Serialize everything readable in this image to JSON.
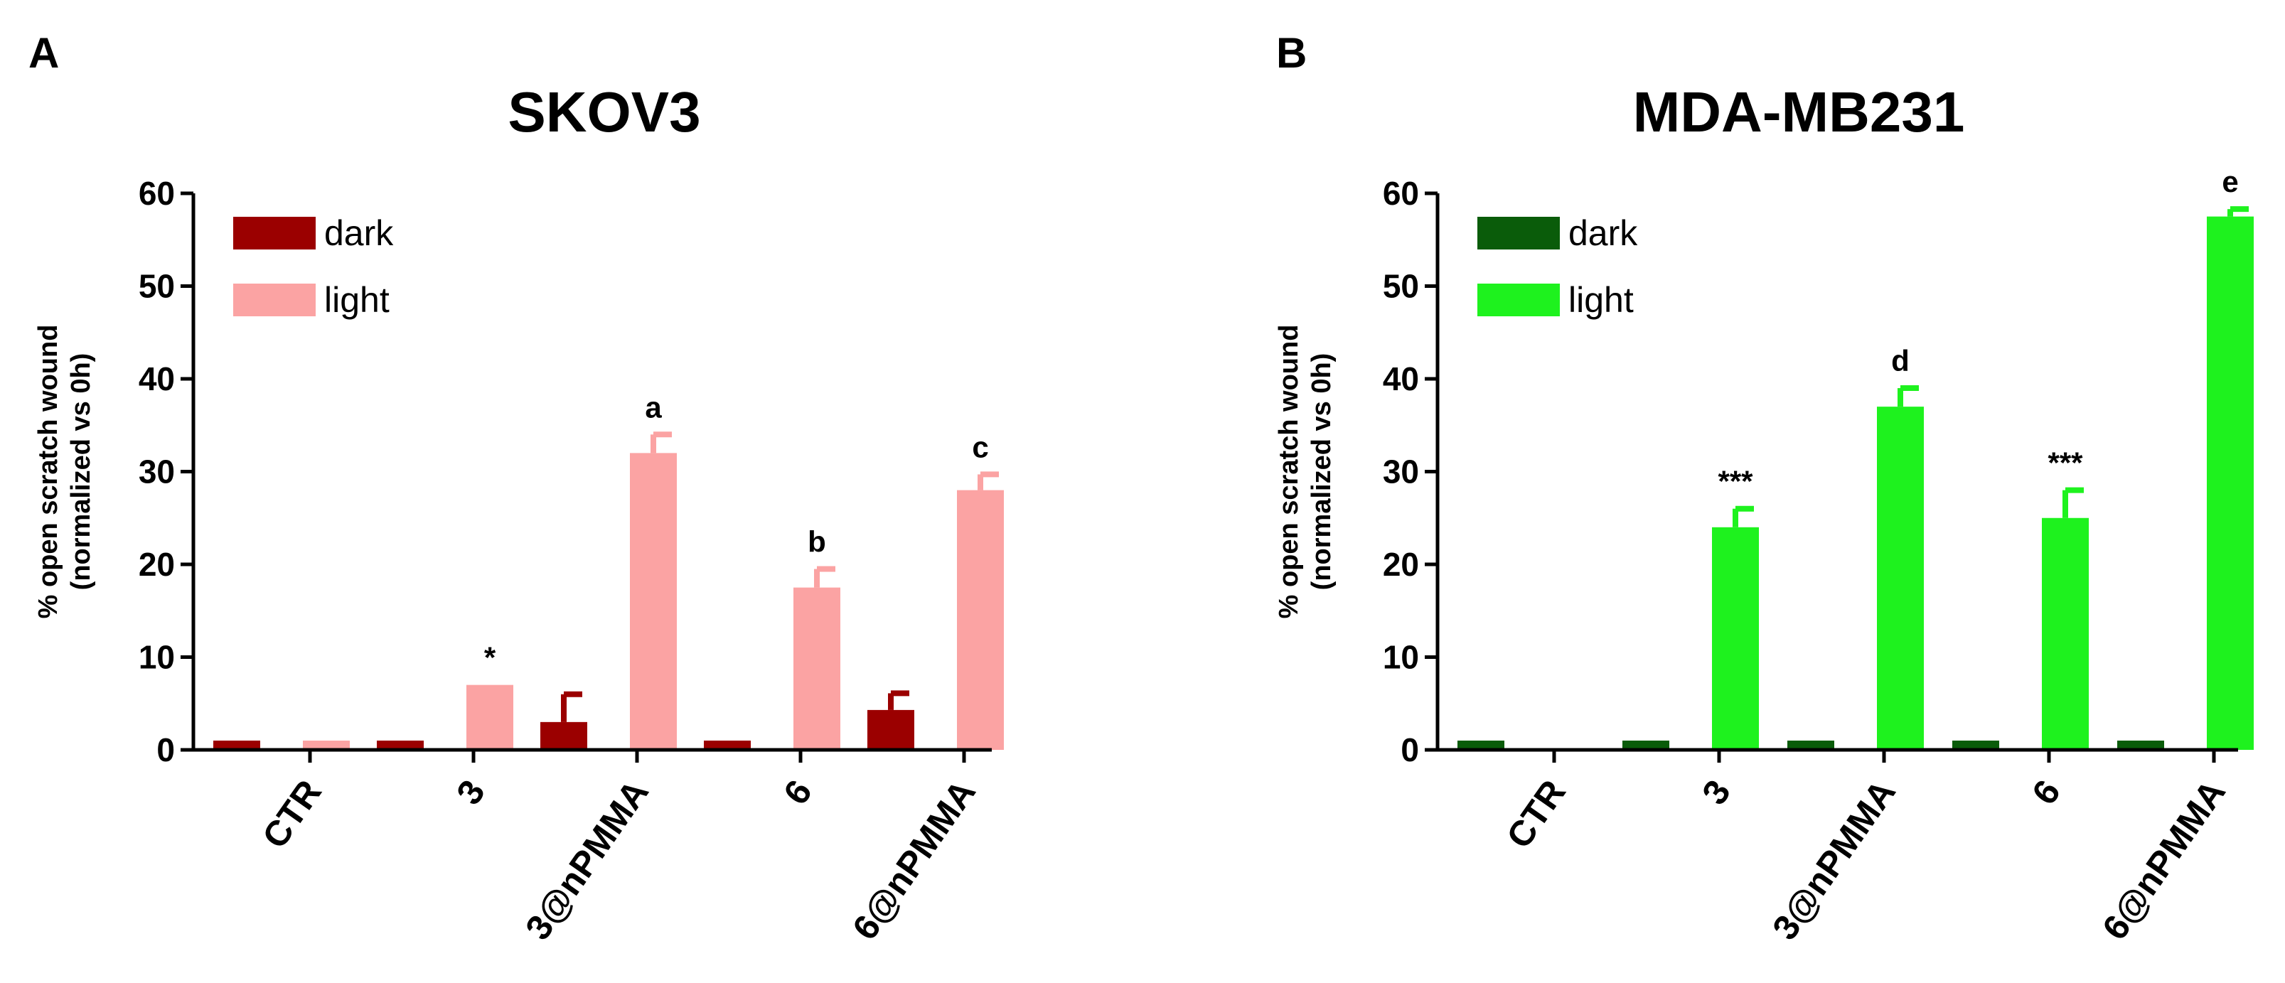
{
  "chart_data": [
    {
      "panel": "A",
      "title": "SKOV3",
      "type": "bar",
      "ylabel_line1": "% open scratch wound",
      "ylabel_line2": "(normalized vs 0h)",
      "ylim": [
        0,
        60
      ],
      "yticks": [
        0,
        10,
        20,
        30,
        40,
        50,
        60
      ],
      "categories": [
        "CTR",
        "3",
        "3@nPMMA",
        "6",
        "6@nPMMA"
      ],
      "legend": "top-left",
      "series": [
        {
          "name": "dark",
          "color": "#9b0000",
          "values": [
            1,
            1,
            3,
            1,
            4.3
          ],
          "errors": [
            0,
            0,
            3,
            0,
            1.8
          ]
        },
        {
          "name": "light",
          "color": "#fba3a3",
          "values": [
            1,
            7,
            32,
            17.5,
            28
          ],
          "errors": [
            0,
            0,
            2,
            2,
            1.7
          ]
        }
      ],
      "annotations": [
        {
          "category": "3",
          "series": "light",
          "text": "*"
        },
        {
          "category": "3@nPMMA",
          "series": "light",
          "text": "a"
        },
        {
          "category": "6",
          "series": "light",
          "text": "b"
        },
        {
          "category": "6@nPMMA",
          "series": "light",
          "text": "c"
        }
      ]
    },
    {
      "panel": "B",
      "title": "MDA-MB231",
      "type": "bar",
      "ylabel_line1": "% open scratch wound",
      "ylabel_line2": "(normalized vs 0h)",
      "ylim": [
        0,
        60
      ],
      "yticks": [
        0,
        10,
        20,
        30,
        40,
        50,
        60
      ],
      "categories": [
        "CTR",
        "3",
        "3@nPMMA",
        "6",
        "6@nPMMA"
      ],
      "legend": "top-left",
      "series": [
        {
          "name": "dark",
          "color": "#0a5c0a",
          "values": [
            1,
            1,
            1,
            1,
            1
          ],
          "errors": [
            0,
            0,
            0,
            0,
            0
          ]
        },
        {
          "name": "light",
          "color": "#1ef21e",
          "values": [
            0,
            24,
            37,
            25,
            57.5
          ],
          "errors": [
            0,
            2,
            2,
            3,
            0.8
          ]
        }
      ],
      "annotations": [
        {
          "category": "3",
          "series": "light",
          "text": "***"
        },
        {
          "category": "3@nPMMA",
          "series": "light",
          "text": "d"
        },
        {
          "category": "6",
          "series": "light",
          "text": "***"
        },
        {
          "category": "6@nPMMA",
          "series": "light",
          "text": "e"
        }
      ]
    }
  ]
}
